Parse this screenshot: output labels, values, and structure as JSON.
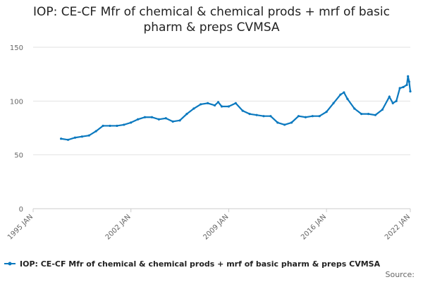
{
  "chart_data": {
    "type": "line",
    "title": "IOP: CE-CF Mfr of chemical & chemical prods + mrf of basic pharm & preps CVMSA",
    "x": [
      "1997 JAN",
      "1997 JUL",
      "1998 JAN",
      "1998 JUL",
      "1999 JAN",
      "1999 JUL",
      "2000 JAN",
      "2000 JUL",
      "2001 JAN",
      "2001 JUL",
      "2002 JAN",
      "2002 JUL",
      "2003 JAN",
      "2003 JUL",
      "2004 JAN",
      "2004 JUL",
      "2005 JAN",
      "2005 JUL",
      "2006 JAN",
      "2006 JUL",
      "2007 JAN",
      "2007 JUL",
      "2008 JAN",
      "2008 APR",
      "2008 JUL",
      "2009 JAN",
      "2009 JUL",
      "2010 JAN",
      "2010 JUL",
      "2011 JAN",
      "2011 JUL",
      "2012 JAN",
      "2012 JUL",
      "2013 JAN",
      "2013 JUL",
      "2014 JAN",
      "2014 JUL",
      "2015 JAN",
      "2015 JUL",
      "2016 JAN",
      "2016 JUL",
      "2017 JAN",
      "2017 APR",
      "2017 JUL",
      "2018 JAN",
      "2018 JUL",
      "2019 JAN",
      "2019 JUL",
      "2020 JAN",
      "2020 JUL",
      "2020 OCT",
      "2021 JAN",
      "2021 APR",
      "2021 JUL",
      "2021 OCT",
      "2021 NOV",
      "2021 DEC",
      "2022 JAN"
    ],
    "series": [
      {
        "name": "IOP: CE-CF Mfr of chemical & chemical prods + mrf of basic pharm & preps CVMSA",
        "color": "#0b79bf",
        "values": [
          65,
          64,
          66,
          67,
          68,
          72,
          77,
          77,
          77,
          78,
          80,
          83,
          85,
          85,
          83,
          84,
          81,
          82,
          88,
          93,
          97,
          98,
          96,
          99,
          95,
          95,
          98,
          91,
          88,
          87,
          86,
          86,
          80,
          78,
          80,
          86,
          85,
          86,
          86,
          90,
          98,
          106,
          108,
          102,
          93,
          88,
          88,
          87,
          92,
          104,
          98,
          100,
          112,
          113,
          115,
          123,
          118,
          109
        ]
      }
    ],
    "xlim": [
      "1995 JAN",
      "2022 JAN"
    ],
    "xticks": [
      "1995 JAN",
      "2002 JAN",
      "2009 JAN",
      "2016 JAN",
      "2022 JAN"
    ],
    "ylim": [
      0,
      150
    ],
    "yticks": [
      0,
      50,
      100,
      150
    ],
    "grid": true,
    "source_label": "Source:"
  }
}
